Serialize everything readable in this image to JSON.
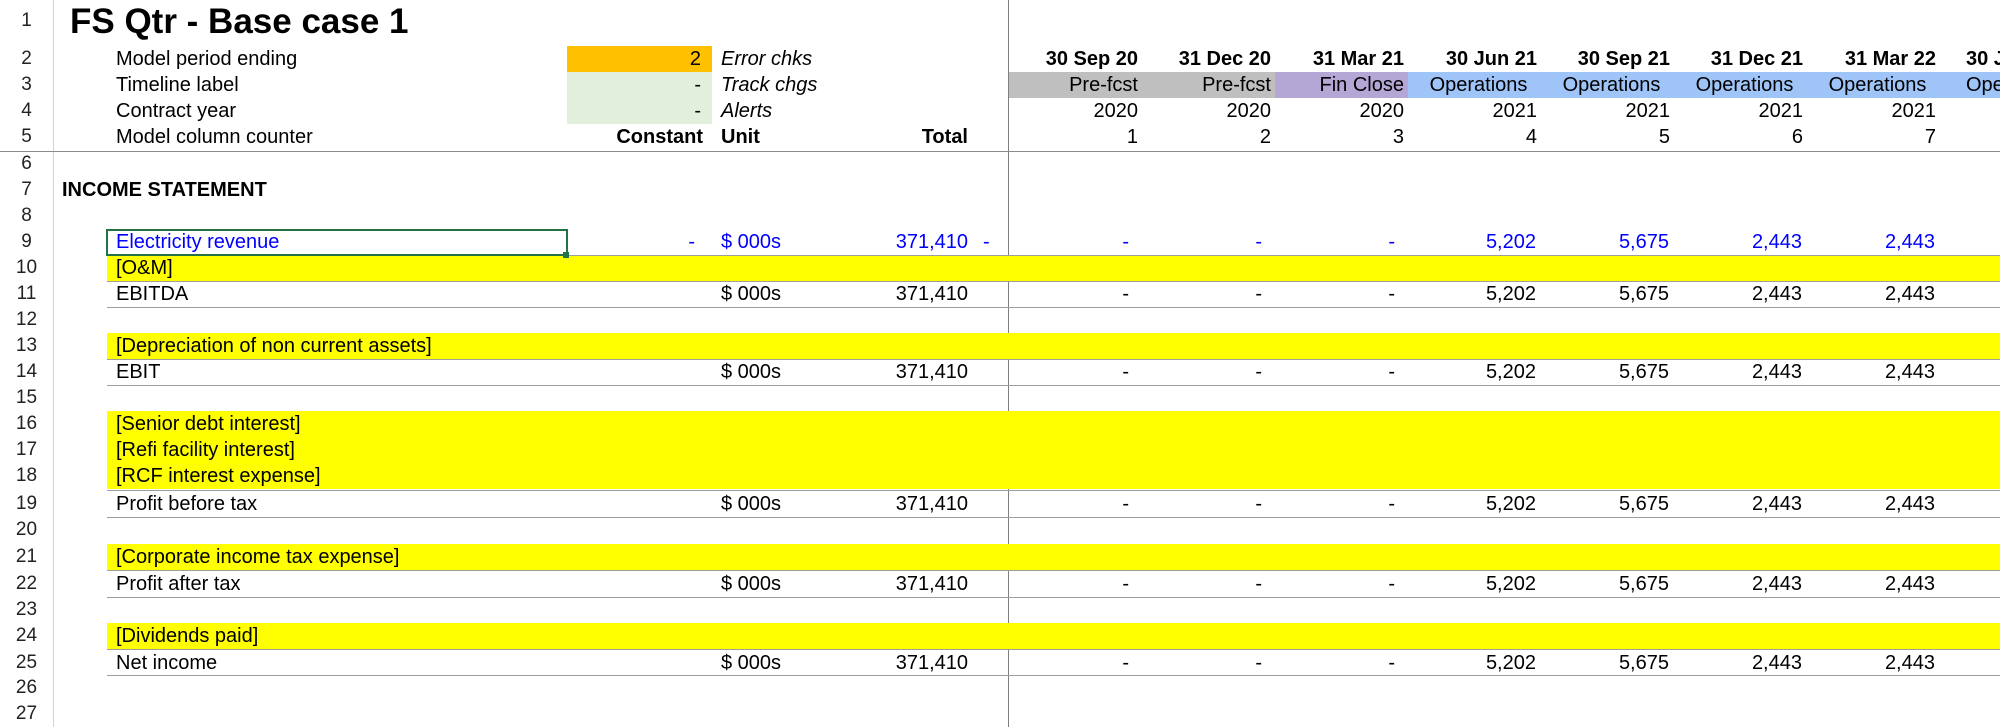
{
  "sheet_title": "FS Qtr - Base case 1",
  "row_numbers": [
    "1",
    "2",
    "3",
    "4",
    "5",
    "6",
    "7",
    "8",
    "9",
    "10",
    "11",
    "12",
    "13",
    "14",
    "15",
    "16",
    "17",
    "18",
    "19",
    "20",
    "21",
    "22",
    "23",
    "24",
    "25",
    "26",
    "27"
  ],
  "header_block": {
    "model_period_label": "Model period ending",
    "model_period_value": "2",
    "timeline_label": "Timeline label",
    "timeline_value": "-",
    "contract_year_label": "Contract year",
    "contract_year_value": "-",
    "counter_label": "Model column counter",
    "error_chks": "Error chks",
    "track_chgs": "Track chgs",
    "alerts": "Alerts",
    "col_constant": "Constant",
    "col_unit": "Unit",
    "col_total": "Total"
  },
  "periods": [
    {
      "date": "30 Sep 20",
      "label": "Pre-fcst",
      "year": "2020",
      "counter": "1"
    },
    {
      "date": "31 Dec 20",
      "label": "Pre-fcst",
      "year": "2020",
      "counter": "2"
    },
    {
      "date": "31 Mar 21",
      "label": "Fin Close",
      "year": "2020",
      "counter": "3"
    },
    {
      "date": "30 Jun 21",
      "label": "Operations",
      "year": "2021",
      "counter": "4"
    },
    {
      "date": "30 Sep 21",
      "label": "Operations",
      "year": "2021",
      "counter": "5"
    },
    {
      "date": "31 Dec 21",
      "label": "Operations",
      "year": "2021",
      "counter": "6"
    },
    {
      "date": "31 Mar 22",
      "label": "Operations",
      "year": "2021",
      "counter": "7"
    },
    {
      "date": "30 J",
      "label": "Ope",
      "year": "",
      "counter": ""
    }
  ],
  "label_colors": {
    "pre_fcst": "#bfbfbf",
    "fin_close": "#b4a7d6",
    "operations": "#9fc5f8"
  },
  "input_colors": {
    "orange": "#ffc000",
    "light_green": "#e2efda"
  },
  "section_title": "INCOME STATEMENT",
  "rows": {
    "r9": {
      "label": "Electricity revenue",
      "constant": "-",
      "unit": "$ 000s",
      "total": "371,410",
      "flag": "-",
      "values": [
        "-",
        "-",
        "-",
        "5,202",
        "5,675",
        "2,443",
        "2,443"
      ]
    },
    "r10": {
      "label": "[O&M]"
    },
    "r11": {
      "label": "EBITDA",
      "unit": "$ 000s",
      "total": "371,410",
      "values": [
        "-",
        "-",
        "-",
        "5,202",
        "5,675",
        "2,443",
        "2,443"
      ]
    },
    "r13": {
      "label": "[Depreciation of non current assets]"
    },
    "r14": {
      "label": "EBIT",
      "unit": "$ 000s",
      "total": "371,410",
      "values": [
        "-",
        "-",
        "-",
        "5,202",
        "5,675",
        "2,443",
        "2,443"
      ]
    },
    "r16": {
      "label": "[Senior debt interest]"
    },
    "r17": {
      "label": "[Refi facility interest]"
    },
    "r18": {
      "label": "[RCF interest expense]"
    },
    "r19": {
      "label": "Profit before tax",
      "unit": "$ 000s",
      "total": "371,410",
      "values": [
        "-",
        "-",
        "-",
        "5,202",
        "5,675",
        "2,443",
        "2,443"
      ]
    },
    "r21": {
      "label": "[Corporate income tax expense]"
    },
    "r22": {
      "label": "Profit after tax",
      "unit": "$ 000s",
      "total": "371,410",
      "values": [
        "-",
        "-",
        "-",
        "5,202",
        "5,675",
        "2,443",
        "2,443"
      ]
    },
    "r24": {
      "label": "[Dividends paid]"
    },
    "r25": {
      "label": "Net income",
      "unit": "$ 000s",
      "total": "371,410",
      "values": [
        "-",
        "-",
        "-",
        "5,202",
        "5,675",
        "2,443",
        "2,443"
      ]
    }
  }
}
